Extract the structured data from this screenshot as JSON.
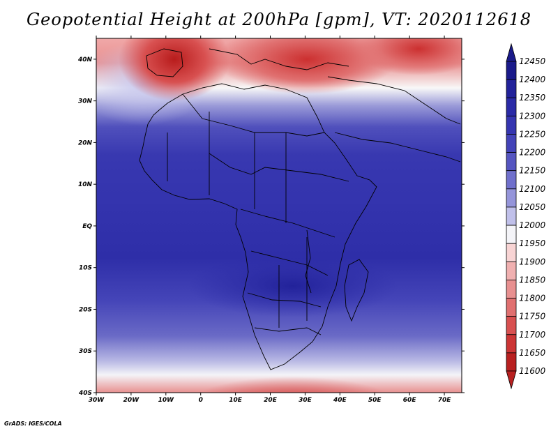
{
  "title": "Geopotential Height at 200hPa [gpm], VT: 2020112618",
  "credit": "GrADS: IGES/COLA",
  "map": {
    "lon_range": [
      -30,
      75
    ],
    "lat_range": [
      -40,
      45
    ],
    "x_ticks": [
      "30W",
      "20W",
      "10W",
      "0",
      "10E",
      "20E",
      "30E",
      "40E",
      "50E",
      "60E",
      "70E"
    ],
    "y_ticks": [
      "40S",
      "30S",
      "20S",
      "10S",
      "EQ",
      "10N",
      "20N",
      "30N",
      "40N"
    ]
  },
  "colorbar": {
    "labels": [
      "12450",
      "12400",
      "12350",
      "12300",
      "12250",
      "12200",
      "12150",
      "12100",
      "12050",
      "12000",
      "11950",
      "11900",
      "11850",
      "11800",
      "11750",
      "11700",
      "11650",
      "11600"
    ],
    "colors": [
      "#1a1a8a",
      "#22229a",
      "#2a2aa6",
      "#3535b0",
      "#4343b8",
      "#5555c0",
      "#7070cc",
      "#9595da",
      "#c0c0ea",
      "#f4f4f8",
      "#f8d4d4",
      "#f0b0b0",
      "#e89090",
      "#e07070",
      "#d85050",
      "#cc3535",
      "#b82020"
    ]
  }
}
